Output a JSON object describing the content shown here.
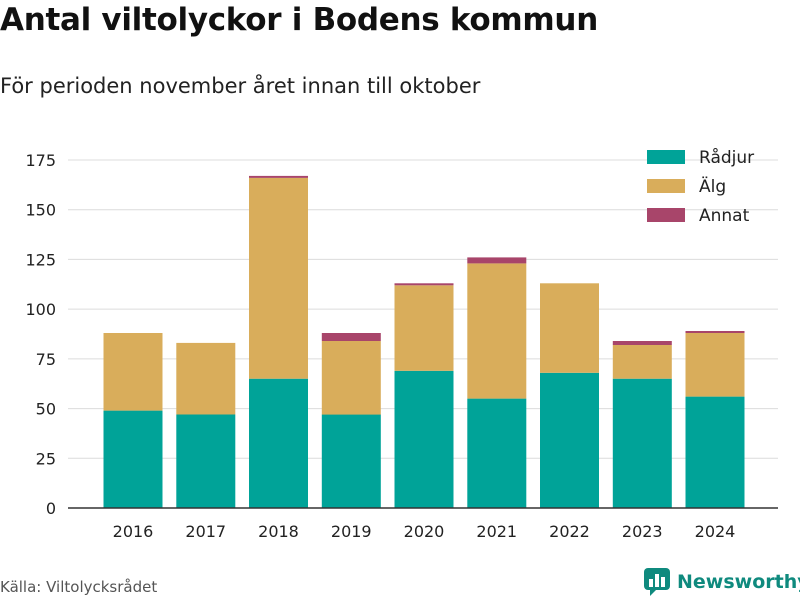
{
  "header": {
    "title": "Antal viltolyckor i Bodens kommun",
    "subtitle": "För perioden november året innan till oktober"
  },
  "footer": {
    "source": "Källa: Viltolycksrådet",
    "brand": "Newsworthy"
  },
  "chart_data": {
    "type": "bar",
    "stacked": true,
    "title": "Antal viltolyckor i Bodens kommun",
    "subtitle": "För perioden november året innan till oktober",
    "categories": [
      "2016",
      "2017",
      "2018",
      "2019",
      "2020",
      "2021",
      "2022",
      "2023",
      "2024"
    ],
    "series": [
      {
        "name": "Rådjur",
        "color": "#00a398",
        "values": [
          49,
          47,
          65,
          47,
          69,
          55,
          68,
          65,
          56
        ]
      },
      {
        "name": "Älg",
        "color": "#d9ad5b",
        "values": [
          39,
          36,
          101,
          37,
          43,
          68,
          45,
          17,
          32
        ]
      },
      {
        "name": "Annat",
        "color": "#a8456a",
        "values": [
          0,
          0,
          1,
          4,
          1,
          3,
          0,
          2,
          1
        ]
      }
    ],
    "ylim": [
      0,
      175
    ],
    "yticks": [
      0,
      25,
      50,
      75,
      100,
      125,
      150,
      175
    ],
    "grid": true,
    "legend_position": "top-right",
    "xlabel": "",
    "ylabel": ""
  }
}
